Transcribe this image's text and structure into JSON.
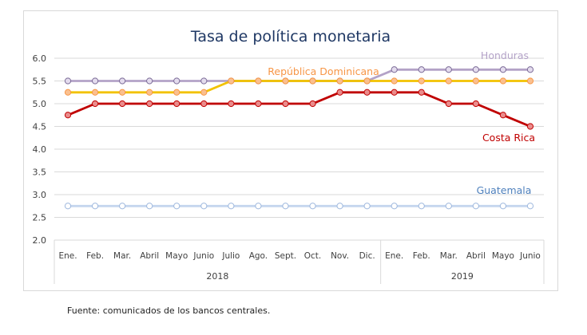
{
  "chart_data": {
    "type": "line",
    "title": "Tasa de política monetaria",
    "xlabel": "",
    "ylabel": "",
    "ylim": [
      2.0,
      6.0
    ],
    "yticks": [
      "6.0",
      "5.5",
      "5.0",
      "4.5",
      "4.0",
      "3.5",
      "3.0",
      "2.5",
      "2.0"
    ],
    "grid": true,
    "legend": "inline labels",
    "categories": [
      "Ene.",
      "Feb.",
      "Mar.",
      "Abril",
      "Mayo",
      "Junio",
      "Julio",
      "Ago.",
      "Sept.",
      "Oct.",
      "Nov.",
      "Dic.",
      "Ene.",
      "Feb.",
      "Mar.",
      "Abril",
      "Mayo",
      "Junio"
    ],
    "year_groups": [
      {
        "label": "2018",
        "count": 12
      },
      {
        "label": "2019",
        "count": 6
      }
    ],
    "series": [
      {
        "name": "Honduras",
        "color": "#b3a2c7",
        "marker_fill": "#e4dcee",
        "marker_stroke": "#7a6a96",
        "values": [
          5.5,
          5.5,
          5.5,
          5.5,
          5.5,
          5.5,
          5.5,
          5.5,
          5.5,
          5.5,
          5.5,
          5.5,
          5.75,
          5.75,
          5.75,
          5.75,
          5.75,
          5.75
        ]
      },
      {
        "name": "República Dominicana",
        "color": "#f2c200",
        "marker_fill": "#fac090",
        "marker_stroke": "#f79646",
        "values": [
          5.25,
          5.25,
          5.25,
          5.25,
          5.25,
          5.25,
          5.5,
          5.5,
          5.5,
          5.5,
          5.5,
          5.5,
          5.5,
          5.5,
          5.5,
          5.5,
          5.5,
          5.5
        ]
      },
      {
        "name": "Costa Rica",
        "color": "#c00000",
        "marker_fill": "#ea8c8c",
        "marker_stroke": "#c00000",
        "values": [
          4.75,
          5.0,
          5.0,
          5.0,
          5.0,
          5.0,
          5.0,
          5.0,
          5.0,
          5.0,
          5.25,
          5.25,
          5.25,
          5.25,
          5.0,
          5.0,
          4.75,
          4.5
        ]
      },
      {
        "name": "Guatemala",
        "color": "#c5d6ee",
        "marker_fill": "#ffffff",
        "marker_stroke": "#9db7dd",
        "values": [
          2.75,
          2.75,
          2.75,
          2.75,
          2.75,
          2.75,
          2.75,
          2.75,
          2.75,
          2.75,
          2.75,
          2.75,
          2.75,
          2.75,
          2.75,
          2.75,
          2.75,
          2.75
        ]
      }
    ],
    "series_label_colors": {
      "Honduras": "#b3a2c7",
      "República Dominicana": "#f79646",
      "Costa Rica": "#c00000",
      "Guatemala": "#4f81bd"
    },
    "title_color": "#1f3864"
  },
  "footnote": "Fuente: comunicados de los bancos centrales."
}
